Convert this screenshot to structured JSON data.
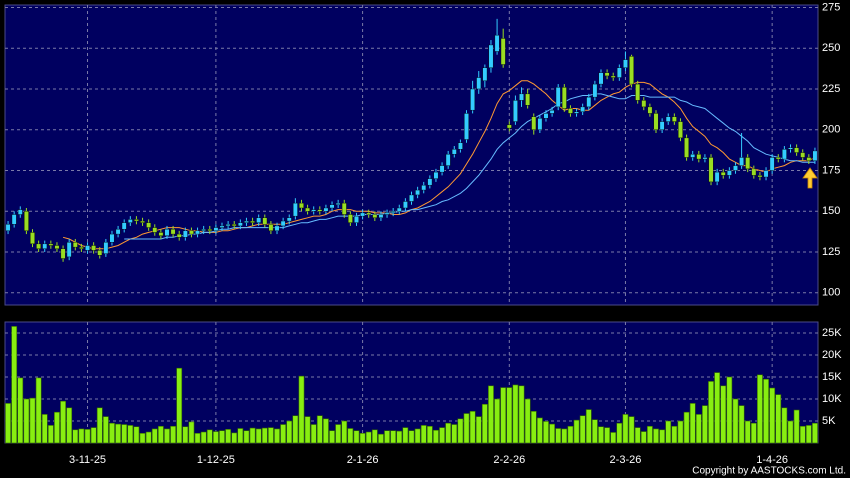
{
  "chart_data": [
    {
      "type": "candlestick",
      "up_color": "#33ccff",
      "down_color": "#99dd22",
      "ylim": [
        92.5,
        276.5
      ],
      "yticks": [
        100,
        125,
        150,
        175,
        200,
        225,
        250,
        275
      ],
      "grid": true,
      "open": [
        138,
        142,
        148,
        150,
        137,
        130,
        127,
        130,
        129,
        127,
        122,
        131,
        128,
        126,
        129,
        126,
        124,
        131,
        136,
        139,
        143,
        145,
        144,
        143,
        140,
        137,
        135,
        139,
        136,
        134,
        138,
        136,
        138,
        139,
        138,
        140,
        141,
        142,
        141,
        143,
        144,
        143,
        146,
        142,
        138,
        141,
        144,
        147,
        155,
        152,
        150,
        151,
        150,
        152,
        154,
        155,
        148,
        143,
        147,
        149,
        148,
        146,
        148,
        149,
        150,
        152,
        156,
        160,
        163,
        166,
        170,
        174,
        178,
        185,
        188,
        194,
        212,
        225,
        230,
        238,
        248,
        256,
        203,
        205,
        218,
        222,
        208,
        200,
        207,
        210,
        214,
        226,
        213,
        210,
        211,
        214,
        220,
        228,
        235,
        233,
        232,
        238,
        245,
        228,
        218,
        214,
        210,
        200,
        205,
        208,
        205,
        195,
        183,
        185,
        182,
        183,
        168,
        174,
        172,
        175,
        178,
        183,
        176,
        172,
        171,
        175,
        183,
        182,
        188,
        189,
        186,
        183,
        181
      ],
      "high": [
        144,
        150,
        153,
        152,
        139,
        132,
        132,
        132,
        131,
        129,
        133,
        133,
        130,
        131,
        131,
        128,
        133,
        138,
        141,
        145,
        147,
        147,
        146,
        145,
        142,
        139,
        141,
        141,
        138,
        140,
        140,
        140,
        141,
        141,
        142,
        143,
        144,
        144,
        145,
        146,
        146,
        148,
        148,
        144,
        143,
        146,
        148,
        158,
        157,
        154,
        153,
        153,
        154,
        156,
        157,
        157,
        150,
        149,
        151,
        151,
        150,
        150,
        151,
        152,
        154,
        158,
        162,
        165,
        168,
        172,
        176,
        180,
        187,
        190,
        194,
        212,
        230,
        236,
        240,
        255,
        268,
        262,
        205,
        221,
        226,
        225,
        210,
        209,
        212,
        214,
        228,
        228,
        215,
        213,
        216,
        222,
        230,
        237,
        237,
        235,
        240,
        248,
        246,
        230,
        220,
        216,
        212,
        207,
        210,
        210,
        207,
        197,
        187,
        187,
        185,
        185,
        176,
        176,
        177,
        180,
        198,
        185,
        178,
        174,
        177,
        185,
        185,
        190,
        191,
        191,
        188,
        185,
        189
      ],
      "low": [
        136,
        140,
        146,
        136,
        128,
        125,
        125,
        127,
        125,
        119,
        120,
        126,
        125,
        124,
        124,
        121,
        122,
        129,
        134,
        137,
        141,
        142,
        141,
        138,
        135,
        133,
        133,
        134,
        132,
        132,
        134,
        134,
        136,
        136,
        136,
        138,
        139,
        139,
        139,
        141,
        141,
        141,
        140,
        136,
        136,
        139,
        142,
        145,
        150,
        148,
        148,
        148,
        148,
        150,
        152,
        146,
        141,
        141,
        145,
        146,
        144,
        144,
        146,
        147,
        148,
        150,
        154,
        158,
        161,
        164,
        168,
        172,
        176,
        183,
        186,
        192,
        210,
        222,
        226,
        235,
        246,
        238,
        199,
        203,
        214,
        213,
        197,
        198,
        205,
        208,
        212,
        211,
        208,
        208,
        209,
        212,
        218,
        226,
        231,
        230,
        230,
        236,
        226,
        216,
        212,
        208,
        198,
        198,
        203,
        203,
        193,
        181,
        181,
        180,
        180,
        166,
        166,
        170,
        170,
        173,
        176,
        174,
        170,
        169,
        169,
        173,
        180,
        180,
        186,
        184,
        181,
        179,
        179
      ],
      "close": [
        142,
        148,
        151,
        138,
        130,
        127,
        130,
        129,
        127,
        121,
        131,
        128,
        127,
        129,
        126,
        123,
        131,
        136,
        139,
        143,
        145,
        144,
        143,
        140,
        137,
        135,
        139,
        136,
        134,
        138,
        136,
        138,
        139,
        138,
        140,
        141,
        142,
        141,
        143,
        144,
        143,
        146,
        142,
        138,
        141,
        144,
        146,
        155,
        152,
        150,
        151,
        150,
        152,
        154,
        155,
        148,
        143,
        147,
        149,
        148,
        146,
        148,
        149,
        150,
        152,
        156,
        160,
        163,
        166,
        170,
        174,
        178,
        185,
        188,
        192,
        210,
        225,
        232,
        238,
        252,
        258,
        240,
        201,
        218,
        222,
        215,
        200,
        207,
        210,
        212,
        226,
        213,
        210,
        211,
        214,
        220,
        228,
        235,
        233,
        232,
        238,
        243,
        228,
        218,
        214,
        210,
        200,
        205,
        208,
        205,
        195,
        183,
        185,
        182,
        183,
        168,
        174,
        172,
        175,
        178,
        183,
        176,
        172,
        171,
        175,
        183,
        182,
        188,
        189,
        186,
        183,
        181,
        187
      ],
      "series": [
        {
          "color": "#ff9933",
          "values": [
            null,
            null,
            null,
            null,
            null,
            null,
            null,
            null,
            null,
            134,
            133,
            131,
            129,
            128,
            127,
            127,
            127,
            128,
            129,
            131,
            133,
            134,
            136,
            137,
            138,
            139,
            140,
            140,
            140,
            139,
            138,
            138,
            137,
            137,
            137,
            138,
            138,
            139,
            140,
            140,
            141,
            142,
            142,
            142,
            142,
            142,
            143,
            144,
            145,
            146,
            147,
            147,
            148,
            150,
            151,
            151,
            151,
            150,
            150,
            150,
            149,
            149,
            149,
            148,
            148,
            149,
            151,
            152,
            154,
            156,
            159,
            162,
            165,
            169,
            173,
            179,
            185,
            192,
            199,
            207,
            216,
            222,
            224,
            227,
            230,
            230,
            228,
            225,
            222,
            218,
            215,
            212,
            213,
            213,
            212,
            212,
            215,
            218,
            220,
            222,
            223,
            226,
            228,
            229,
            229,
            228,
            225,
            222,
            220,
            217,
            213,
            207,
            202,
            199,
            196,
            191,
            189,
            186,
            182,
            180,
            178,
            178,
            176,
            175,
            174,
            176,
            177,
            178,
            180,
            181,
            181,
            181,
            183
          ]
        },
        {
          "color": "#66bbff",
          "values": [
            null,
            null,
            null,
            null,
            null,
            null,
            null,
            null,
            null,
            null,
            null,
            null,
            null,
            null,
            null,
            null,
            null,
            null,
            null,
            133,
            133,
            133,
            133,
            133,
            133,
            133,
            134,
            134,
            135,
            135,
            136,
            136,
            137,
            137,
            138,
            139,
            139,
            140,
            140,
            140,
            140,
            140,
            140,
            140,
            140,
            140,
            141,
            142,
            143,
            143,
            144,
            145,
            145,
            146,
            147,
            147,
            147,
            147,
            148,
            148,
            148,
            148,
            149,
            149,
            150,
            150,
            151,
            151,
            152,
            153,
            154,
            156,
            157,
            159,
            161,
            164,
            168,
            172,
            177,
            182,
            188,
            192,
            195,
            198,
            202,
            205,
            207,
            209,
            211,
            213,
            216,
            217,
            219,
            220,
            221,
            221,
            222,
            222,
            221,
            220,
            219,
            219,
            221,
            221,
            221,
            220,
            220,
            220,
            220,
            220,
            218,
            217,
            215,
            214,
            213,
            210,
            207,
            204,
            201,
            199,
            196,
            193,
            189,
            187,
            185,
            184,
            183,
            182,
            181,
            181,
            180,
            180,
            180
          ]
        }
      ]
    },
    {
      "type": "bar",
      "color": "#88ee11",
      "ylim": [
        0,
        27500
      ],
      "yticks": [
        {
          "value": 5000,
          "label": "5K"
        },
        {
          "value": 10000,
          "label": "10K"
        },
        {
          "value": 15000,
          "label": "15K"
        },
        {
          "value": 20000,
          "label": "20K"
        },
        {
          "value": 25000,
          "label": "25K"
        }
      ],
      "grid": true,
      "categories": [
        null,
        null,
        null,
        null,
        null,
        null,
        null,
        null,
        null,
        null,
        null,
        null,
        null,
        "3-11-25",
        null,
        null,
        null,
        null,
        null,
        null,
        null,
        null,
        null,
        null,
        null,
        null,
        null,
        null,
        null,
        null,
        null,
        null,
        null,
        null,
        "1-12-25",
        null,
        null,
        null,
        null,
        null,
        null,
        null,
        null,
        null,
        null,
        null,
        null,
        null,
        null,
        null,
        null,
        null,
        null,
        null,
        null,
        null,
        null,
        null,
        "2-1-26",
        null,
        null,
        null,
        null,
        null,
        null,
        null,
        null,
        null,
        null,
        null,
        null,
        null,
        null,
        null,
        null,
        null,
        null,
        null,
        null,
        null,
        null,
        null,
        "2-2-26",
        null,
        null,
        null,
        null,
        null,
        null,
        null,
        null,
        null,
        null,
        null,
        null,
        null,
        null,
        null,
        null,
        null,
        null,
        "2-3-26",
        null,
        null,
        null,
        null,
        null,
        null,
        null,
        null,
        null,
        null,
        null,
        null,
        null,
        null,
        null,
        null,
        null,
        null,
        null,
        null,
        null,
        null,
        null,
        "1-4-26",
        null,
        null,
        null,
        null,
        null,
        null,
        null
      ],
      "values": [
        9000,
        26500,
        14800,
        10000,
        10200,
        14800,
        6500,
        4000,
        7000,
        9500,
        8000,
        3000,
        3200,
        3100,
        3500,
        8000,
        6000,
        4500,
        4300,
        4200,
        4000,
        3700,
        2200,
        2500,
        3200,
        3800,
        3200,
        3800,
        17000,
        3700,
        4800,
        2200,
        2500,
        3000,
        2600,
        2800,
        3100,
        2300,
        3300,
        2800,
        3400,
        3200,
        3400,
        3500,
        3200,
        4200,
        5000,
        6200,
        15200,
        6000,
        4200,
        6200,
        5500,
        2800,
        4200,
        5000,
        3300,
        2800,
        2200,
        2500,
        3000,
        2000,
        2800,
        2800,
        2700,
        3500,
        2800,
        3200,
        4000,
        3800,
        2900,
        3500,
        4500,
        4200,
        5500,
        6700,
        7200,
        6000,
        8800,
        13000,
        10000,
        12600,
        12600,
        13200,
        13000,
        10000,
        7200,
        5700,
        4900,
        4300,
        3300,
        3200,
        3800,
        5200,
        6200,
        7600,
        5300,
        3700,
        3500,
        2400,
        4500,
        6500,
        6000,
        3500,
        2600,
        3800,
        3200,
        3000,
        5000,
        3800,
        5000,
        7000,
        9000,
        6500,
        8500,
        14000,
        16000,
        13000,
        15000,
        10000,
        8500,
        5000,
        4500,
        15500,
        14500,
        12500,
        11000,
        8000,
        5000,
        7500,
        3800,
        4000,
        4500
      ],
      "source": "Copyright by AASTOCKS.com Ltd."
    }
  ]
}
